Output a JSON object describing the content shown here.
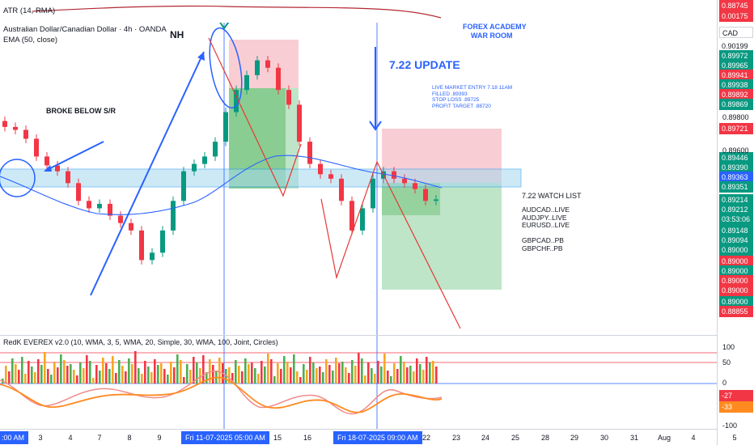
{
  "atr_legend": "ATR (14, RMA)",
  "atr_value": "0.00175",
  "currency": "CAD",
  "main_legend": {
    "title": "Australian Dollar/Canadian Dollar · 4h · OANDA",
    "ema": "EMA (50, close)"
  },
  "annotations": {
    "nh": "NH",
    "broke": "BROKE BELOW S/R",
    "academy_line1": "FOREX ACADEMY",
    "academy_line2": "WAR ROOM",
    "update": "7.22 UPDATE",
    "entry_lines": [
      "LIVE MARKET ENTRY 7.18 11AM",
      "FILLED   .89393",
      "STOP LOSS   .89725",
      "PROFIT TARGET   .88720"
    ],
    "watch_title": "7.22 WATCH LIST",
    "watch_items": [
      "AUDCAD..LIVE",
      "AUDJPY..LIVE",
      "EURUSD..LIVE",
      "",
      "GBPCAD..PB",
      "GBPCHF..PB"
    ]
  },
  "osc_legend": "RedK EVEREX v2.0 (10, WMA, 3, 5, WMA, 20, Simple, 30, WMA, 100, Joint, Circles)",
  "osc_values": [
    "-27",
    "-33"
  ],
  "price_axis_labels": [
    "0.89800",
    "0.89600",
    "0.89000"
  ],
  "price_tags": [
    {
      "text": "0.90199",
      "bg": "#ffffff",
      "fg": "#131722"
    },
    {
      "text": "0.89972",
      "bg": "#089981",
      "fg": "#ffffff"
    },
    {
      "text": "0.89965",
      "bg": "#089981",
      "fg": "#ffffff"
    },
    {
      "text": "0.89941",
      "bg": "#f23645",
      "fg": "#ffffff"
    },
    {
      "text": "0.89938",
      "bg": "#089981",
      "fg": "#ffffff"
    },
    {
      "text": "0.89892",
      "bg": "#f23645",
      "fg": "#ffffff"
    },
    {
      "text": "0.89869",
      "bg": "#089981",
      "fg": "#ffffff"
    },
    {
      "text": "0.89721",
      "bg": "#f23645",
      "fg": "#ffffff"
    },
    {
      "text": "0.89446",
      "bg": "#089981",
      "fg": "#ffffff"
    },
    {
      "text": "0.89390",
      "bg": "#089981",
      "fg": "#ffffff"
    },
    {
      "text": "0.89363",
      "bg": "#2962ff",
      "fg": "#ffffff"
    },
    {
      "text": "0.89351",
      "bg": "#089981",
      "fg": "#ffffff"
    },
    {
      "text": "0.89214",
      "bg": "#089981",
      "fg": "#ffffff"
    },
    {
      "text": "0.89212",
      "bg": "#089981",
      "fg": "#ffffff"
    },
    {
      "text": "03:53:06",
      "bg": "#089981",
      "fg": "#ffffff"
    },
    {
      "text": "0.89148",
      "bg": "#089981",
      "fg": "#ffffff"
    },
    {
      "text": "0.89094",
      "bg": "#089981",
      "fg": "#ffffff"
    },
    {
      "text": "0.89000",
      "bg": "#089981",
      "fg": "#ffffff"
    },
    {
      "text": "0.89000",
      "bg": "#f23645",
      "fg": "#ffffff"
    },
    {
      "text": "0.89000",
      "bg": "#089981",
      "fg": "#ffffff"
    },
    {
      "text": "0.89000",
      "bg": "#f23645",
      "fg": "#ffffff"
    },
    {
      "text": "0.89000",
      "bg": "#f23645",
      "fg": "#ffffff"
    },
    {
      "text": "0.89000",
      "bg": "#089981",
      "fg": "#ffffff"
    },
    {
      "text": "0.88855",
      "bg": "#f23645",
      "fg": "#ffffff"
    },
    {
      "text": "0.88745",
      "bg": "#f23645",
      "fg": "#ffffff"
    }
  ],
  "osc_axis": [
    "100",
    "50",
    "0",
    "-100"
  ],
  "time_axis": {
    "ticks": [
      "3",
      "4",
      "7",
      "8",
      "9",
      "15",
      "16",
      "22",
      "23",
      "24",
      "25",
      "28",
      "29",
      "30",
      "31",
      "Aug",
      "4"
    ],
    "left_clip": ":00 AM",
    "highlight1": "Fri 11-07-2025   05:00 AM",
    "highlight2": "Fri 18-07-2025   09:00 AM",
    "right_tick": "5"
  },
  "colors": {
    "bull": "#089981",
    "bear": "#f23645",
    "accent": "#2962ff",
    "ema": "#2962ff"
  },
  "chart_data": {
    "type": "candlestick",
    "title": "Australian Dollar/Canadian Dollar · 4h · OANDA",
    "series": [
      {
        "name": "EMA (50, close)"
      }
    ],
    "levels": {
      "entry": 0.89393,
      "stop_loss": 0.89725,
      "profit_target": 0.8872,
      "last": 0.89212
    },
    "ohlc_close_approx": [
      0.897,
      0.8968,
      0.8962,
      0.895,
      0.8944,
      0.894,
      0.8932,
      0.892,
      0.8915,
      0.8918,
      0.891,
      0.8905,
      0.89,
      0.888,
      0.8885,
      0.89,
      0.892,
      0.894,
      0.8945,
      0.895,
      0.896,
      0.898,
      0.8995,
      0.9005,
      0.9015,
      0.901,
      0.8995,
      0.8985,
      0.896,
      0.8945,
      0.8938,
      0.8935,
      0.892,
      0.89,
      0.8915,
      0.8935,
      0.894,
      0.8935,
      0.8932,
      0.8928,
      0.892,
      0.8921
    ]
  }
}
